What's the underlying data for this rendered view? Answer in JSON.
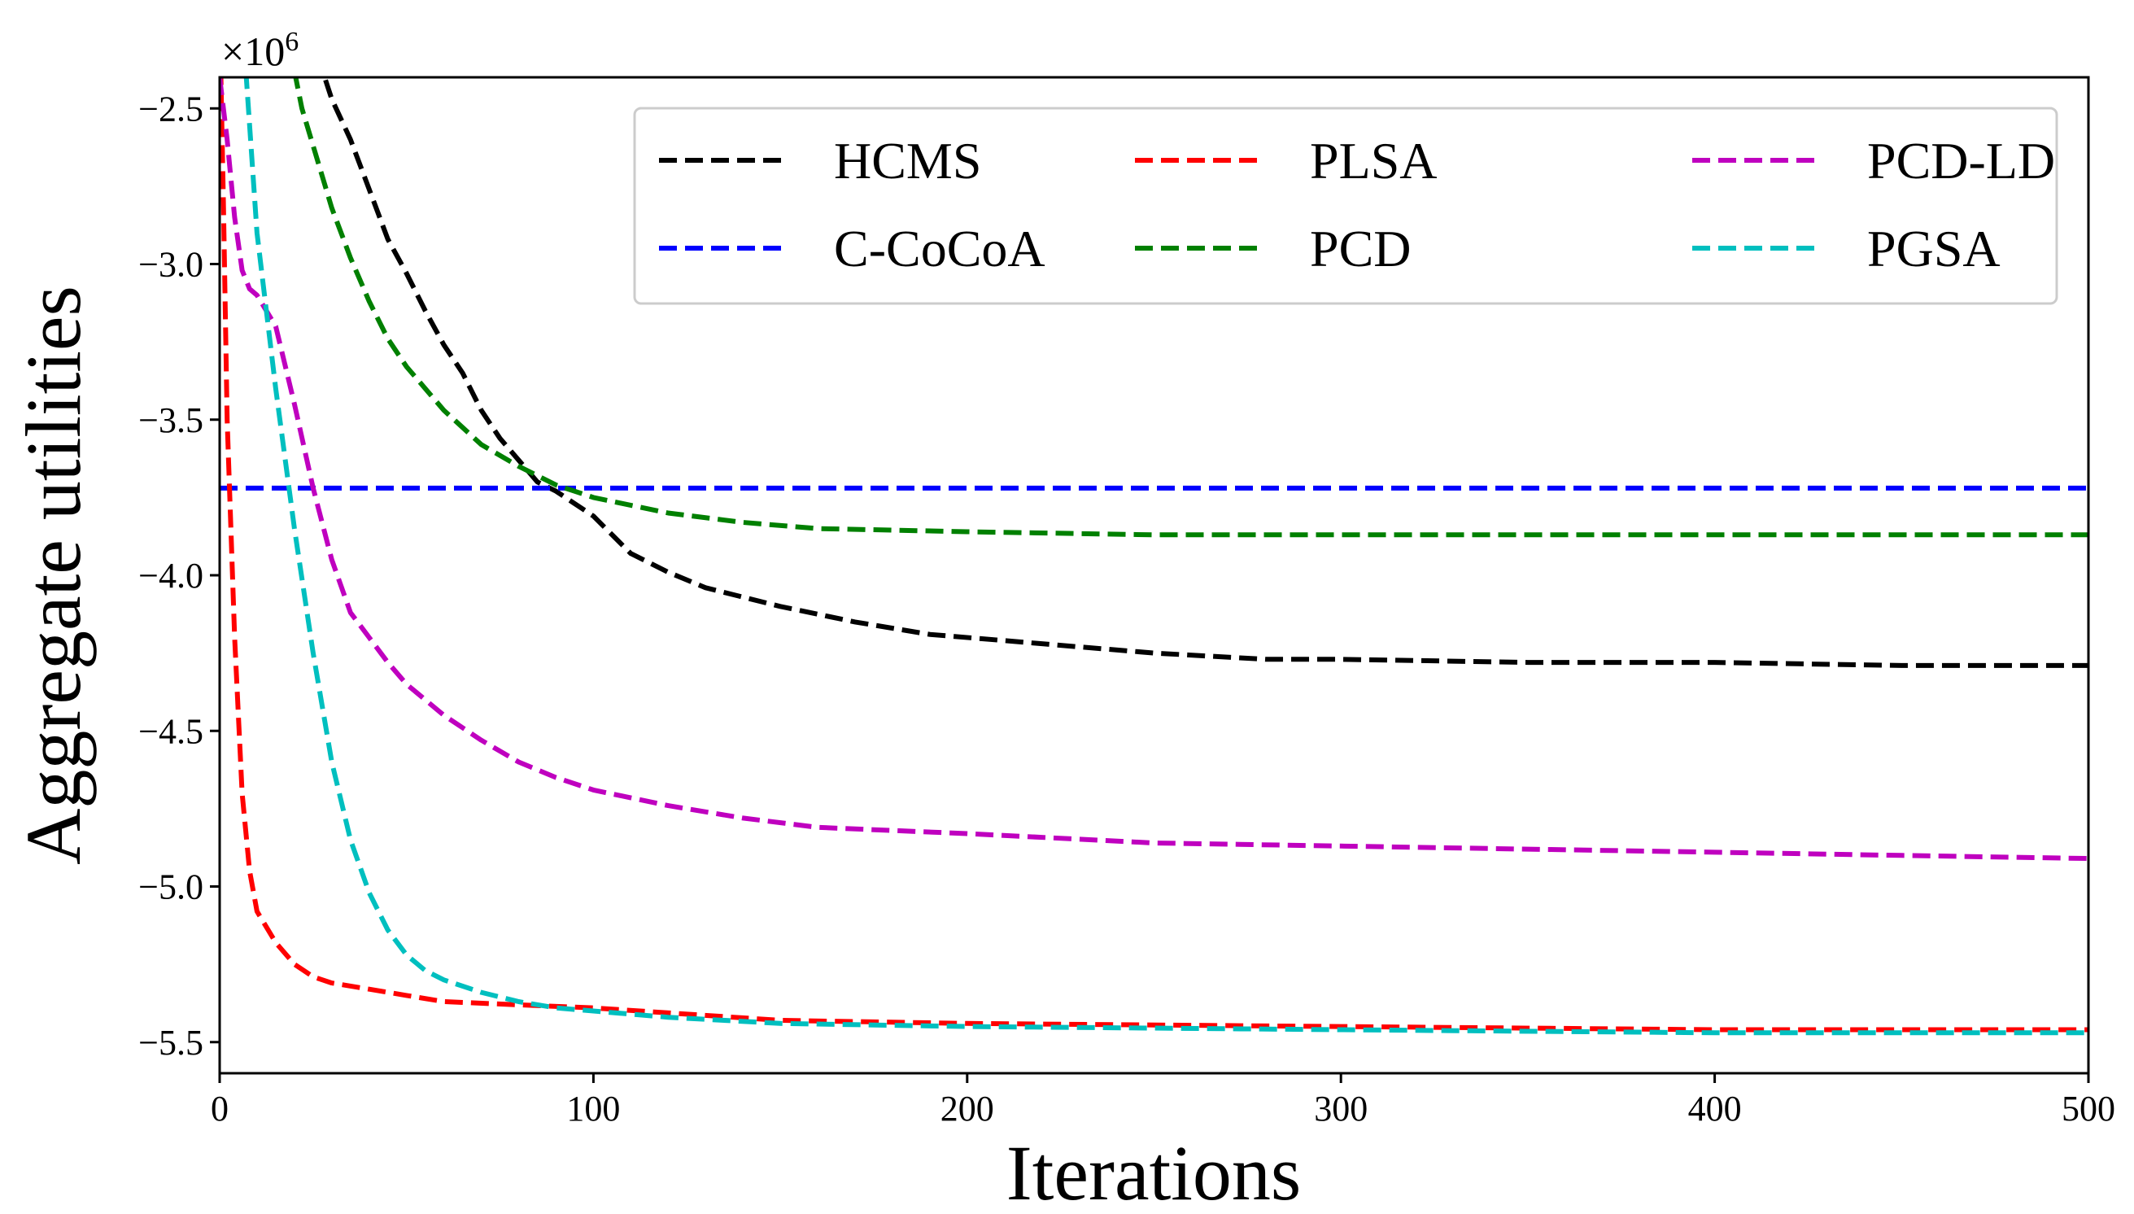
{
  "chart_data": {
    "type": "line",
    "title": "",
    "xlabel": "Iterations",
    "ylabel": "Aggregate utilities",
    "y_offset_text": {
      "base": "×10",
      "exponent": "6"
    },
    "xlim": [
      0,
      500
    ],
    "ylim": [
      -5.6,
      -2.4
    ],
    "xticks": [
      0,
      100,
      200,
      300,
      400,
      500
    ],
    "xtick_labels": [
      "0",
      "100",
      "200",
      "300",
      "400",
      "500"
    ],
    "yticks": [
      -5.5,
      -5.0,
      -4.5,
      -4.0,
      -3.5,
      -3.0,
      -2.5
    ],
    "ytick_labels": [
      "−5.5",
      "−5.0",
      "−4.5",
      "−4.0",
      "−3.5",
      "−3.0",
      "−2.5"
    ],
    "grid": false,
    "legend_position": "top-right",
    "line_style": "dashed",
    "series": [
      {
        "name": "HCMS",
        "color": "#000000",
        "x": [
          20,
          27,
          30,
          35,
          40,
          45,
          50,
          55,
          60,
          65,
          70,
          75,
          80,
          85,
          90,
          95,
          100,
          110,
          120,
          130,
          140,
          150,
          170,
          190,
          210,
          230,
          250,
          280,
          300,
          350,
          400,
          450,
          500
        ],
        "y": [
          -2.28,
          -2.36,
          -2.47,
          -2.6,
          -2.76,
          -2.92,
          -3.03,
          -3.15,
          -3.26,
          -3.35,
          -3.47,
          -3.56,
          -3.63,
          -3.7,
          -3.73,
          -3.77,
          -3.81,
          -3.93,
          -3.99,
          -4.04,
          -4.07,
          -4.1,
          -4.15,
          -4.19,
          -4.21,
          -4.23,
          -4.25,
          -4.27,
          -4.27,
          -4.28,
          -4.28,
          -4.29,
          -4.29
        ]
      },
      {
        "name": "C-CoCoA",
        "color": "#0000ff",
        "x": [
          0,
          500
        ],
        "y": [
          -3.72,
          -3.72
        ]
      },
      {
        "name": "PLSA",
        "color": "#ff0000",
        "x": [
          0,
          1,
          2,
          4,
          6,
          8,
          10,
          12,
          15,
          20,
          25,
          30,
          40,
          50,
          60,
          80,
          100,
          150,
          200,
          300,
          400,
          500
        ],
        "y": [
          -2.2,
          -2.8,
          -3.5,
          -4.2,
          -4.7,
          -4.95,
          -5.08,
          -5.12,
          -5.18,
          -5.25,
          -5.29,
          -5.31,
          -5.33,
          -5.35,
          -5.37,
          -5.38,
          -5.39,
          -5.43,
          -5.44,
          -5.45,
          -5.46,
          -5.46
        ]
      },
      {
        "name": "PCD",
        "color": "#008000",
        "x": [
          20,
          22,
          25,
          30,
          35,
          40,
          45,
          50,
          60,
          70,
          80,
          90,
          100,
          120,
          140,
          160,
          200,
          250,
          300,
          400,
          500
        ],
        "y": [
          -2.38,
          -2.5,
          -2.62,
          -2.82,
          -2.98,
          -3.12,
          -3.24,
          -3.33,
          -3.47,
          -3.58,
          -3.65,
          -3.71,
          -3.75,
          -3.8,
          -3.83,
          -3.85,
          -3.86,
          -3.87,
          -3.87,
          -3.87,
          -3.87
        ]
      },
      {
        "name": "PCD-LD",
        "color": "#bf00bf",
        "x": [
          0,
          2,
          4,
          6,
          8,
          10,
          15,
          20,
          25,
          30,
          35,
          40,
          45,
          50,
          60,
          70,
          80,
          90,
          100,
          120,
          140,
          160,
          200,
          250,
          300,
          350,
          400,
          450,
          500
        ],
        "y": [
          -2.4,
          -2.6,
          -2.85,
          -3.02,
          -3.08,
          -3.1,
          -3.2,
          -3.45,
          -3.72,
          -3.95,
          -4.12,
          -4.2,
          -4.28,
          -4.35,
          -4.45,
          -4.53,
          -4.6,
          -4.65,
          -4.69,
          -4.74,
          -4.78,
          -4.81,
          -4.83,
          -4.86,
          -4.87,
          -4.88,
          -4.89,
          -4.9,
          -4.91
        ]
      },
      {
        "name": "PGSA",
        "color": "#00bfbf",
        "x": [
          7,
          10,
          15,
          20,
          25,
          30,
          35,
          40,
          45,
          50,
          55,
          60,
          70,
          80,
          90,
          100,
          120,
          150,
          200,
          300,
          400,
          500
        ],
        "y": [
          -2.38,
          -2.9,
          -3.4,
          -3.85,
          -4.25,
          -4.6,
          -4.85,
          -5.02,
          -5.14,
          -5.22,
          -5.27,
          -5.3,
          -5.34,
          -5.37,
          -5.39,
          -5.4,
          -5.42,
          -5.44,
          -5.45,
          -5.46,
          -5.47,
          -5.47
        ]
      }
    ]
  }
}
